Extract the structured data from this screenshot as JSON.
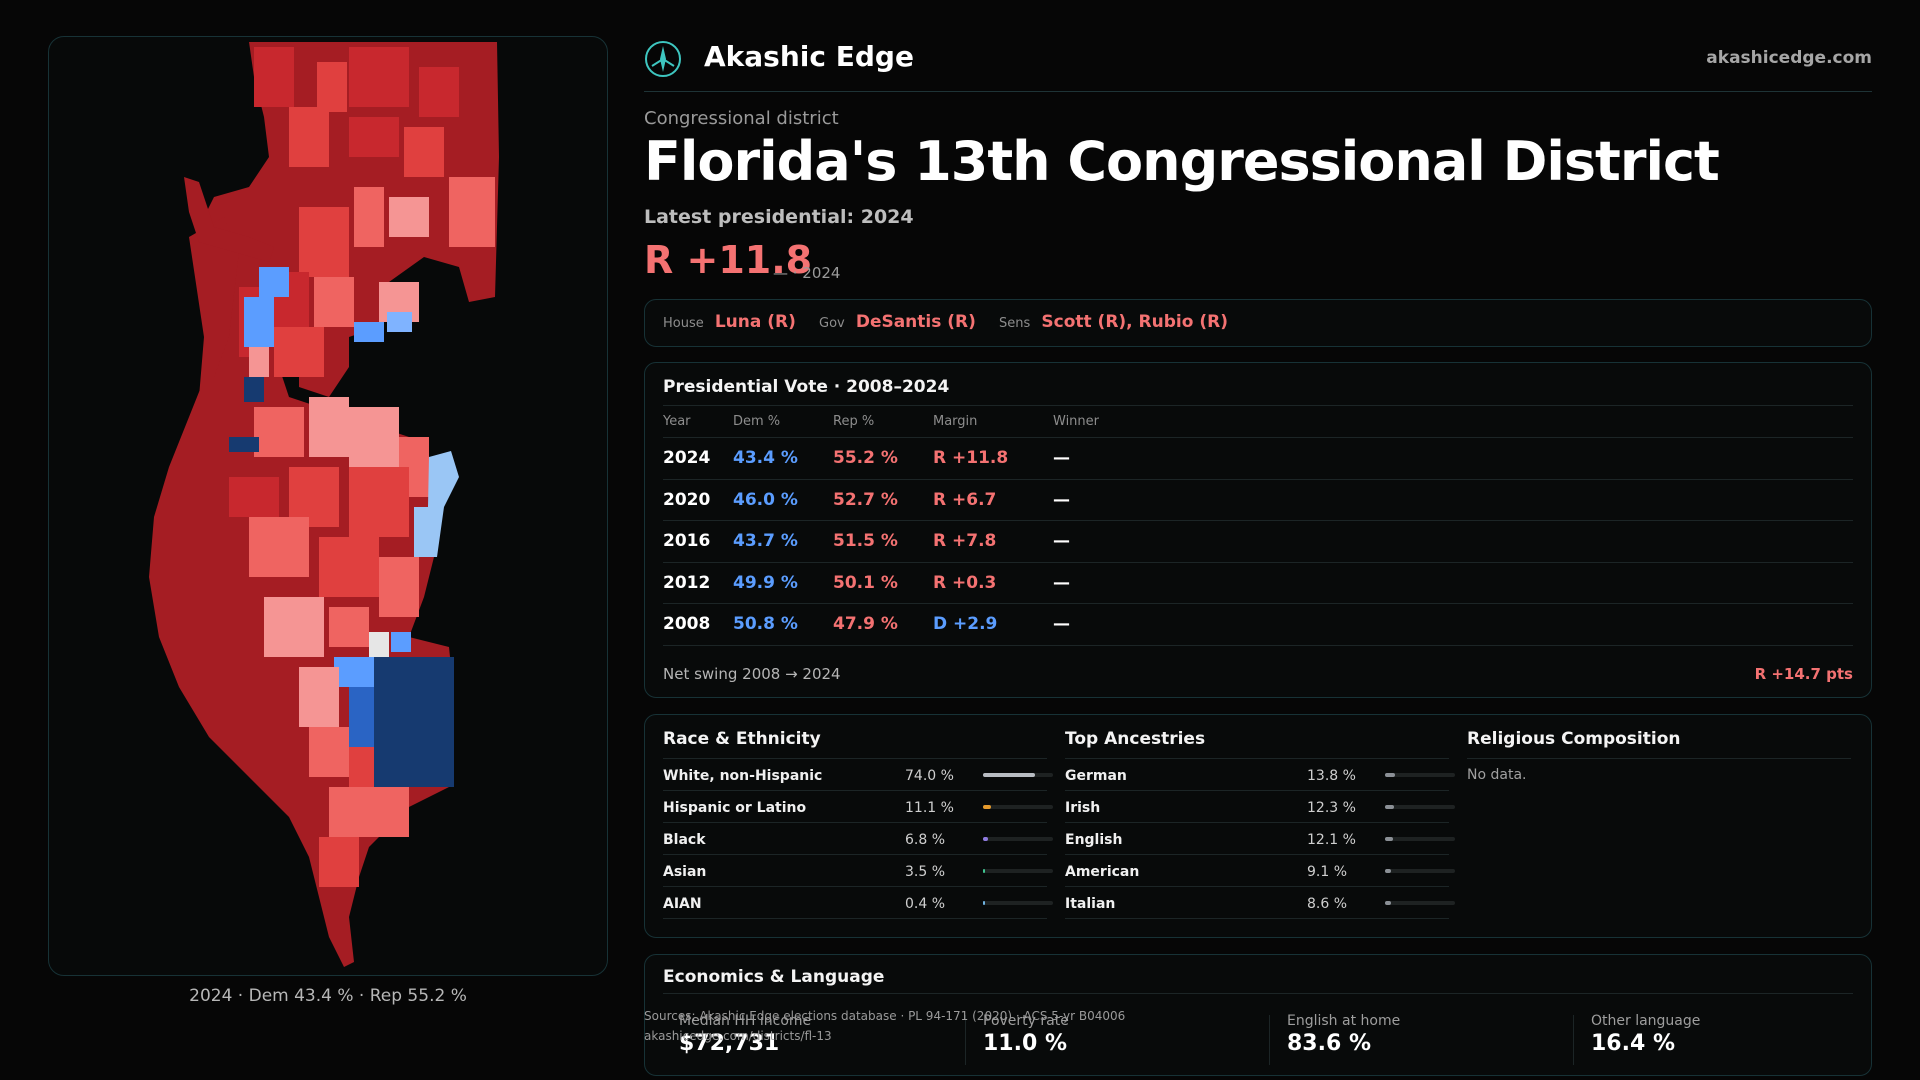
{
  "header": {
    "brand": "Akashic Edge",
    "site_url": "akashicedge.com",
    "logo_icon": "compass-logo-icon"
  },
  "page": {
    "eyebrow": "Congressional district",
    "title": "Florida's 13th Congressional District",
    "latest_label": "Latest presidential: 2024",
    "margin": "R +11.8",
    "margin_sub": "— · 2024"
  },
  "officials": {
    "house_label": "House",
    "house_value": "Luna (R)",
    "gov_label": "Gov",
    "gov_value": "DeSantis (R)",
    "sens_label": "Sens",
    "sens_value": "Scott (R), Rubio (R)"
  },
  "presidential": {
    "title": "Presidential Vote · 2008–2024",
    "columns": [
      "Year",
      "Dem %",
      "Rep %",
      "Margin",
      "Winner"
    ],
    "rows": [
      {
        "year": "2024",
        "dem": "43.4 %",
        "rep": "55.2 %",
        "margin": "R +11.8",
        "winner": "—"
      },
      {
        "year": "2020",
        "dem": "46.0 %",
        "rep": "52.7 %",
        "margin": "R +6.7",
        "winner": "—"
      },
      {
        "year": "2016",
        "dem": "43.7 %",
        "rep": "51.5 %",
        "margin": "R +7.8",
        "winner": "—"
      },
      {
        "year": "2012",
        "dem": "49.9 %",
        "rep": "50.1 %",
        "margin": "R +0.3",
        "winner": "—"
      },
      {
        "year": "2008",
        "dem": "50.8 %",
        "rep": "47.9 %",
        "margin": "D +2.9",
        "winner": "—"
      }
    ],
    "swing_label": "Net swing 2008 → 2024",
    "swing_value": "R +14.7 pts"
  },
  "race": {
    "title": "Race & Ethnicity",
    "rows": [
      {
        "label": "White, non-Hispanic",
        "pct": "74.0 %",
        "value": 74.0,
        "color": "#b8bcc2"
      },
      {
        "label": "Hispanic or Latino",
        "pct": "11.1 %",
        "value": 11.1,
        "color": "#e59a2c"
      },
      {
        "label": "Black",
        "pct": "6.8 %",
        "value": 6.8,
        "color": "#8f7be0"
      },
      {
        "label": "Asian",
        "pct": "3.5 %",
        "value": 3.5,
        "color": "#3fc48f"
      },
      {
        "label": "AIAN",
        "pct": "0.4 %",
        "value": 0.4,
        "color": "#6fb2e0"
      }
    ]
  },
  "ancestry": {
    "title": "Top Ancestries",
    "rows": [
      {
        "label": "German",
        "pct": "13.8 %",
        "value": 13.8,
        "color": "#8b9096"
      },
      {
        "label": "Irish",
        "pct": "12.3 %",
        "value": 12.3,
        "color": "#8b9096"
      },
      {
        "label": "English",
        "pct": "12.1 %",
        "value": 12.1,
        "color": "#8b9096"
      },
      {
        "label": "American",
        "pct": "9.1 %",
        "value": 9.1,
        "color": "#8b9096"
      },
      {
        "label": "Italian",
        "pct": "8.6 %",
        "value": 8.6,
        "color": "#8b9096"
      }
    ]
  },
  "religion": {
    "title": "Religious Composition",
    "empty_text": "No data."
  },
  "economics": {
    "title": "Economics & Language",
    "stats": [
      {
        "label": "Median HH income",
        "value": "$72,731"
      },
      {
        "label": "Poverty rate",
        "value": "11.0 %"
      },
      {
        "label": "English at home",
        "value": "83.6 %"
      },
      {
        "label": "Other language",
        "value": "16.4 %"
      }
    ]
  },
  "sources": {
    "line1": "Sources: Akashic Edge elections database · PL 94-171 (2020) · ACS 5-yr B04006",
    "line2": "akashicedge.com/districts/fl-13"
  },
  "map": {
    "caption": "2024 · Dem 43.4 % · Rep 55.2 %",
    "colors": {
      "safe_r": "#a51d23",
      "likely_r": "#c8282e",
      "lean_r": "#e0403f",
      "tilt_r": "#ef6461",
      "soft_r": "#f59594",
      "tossup": "#e6e6e6",
      "lean_d": "#5b9dff",
      "likely_d": "#2a64c4",
      "safe_d": "#163a70",
      "pale_d": "#9ac6f5"
    }
  }
}
